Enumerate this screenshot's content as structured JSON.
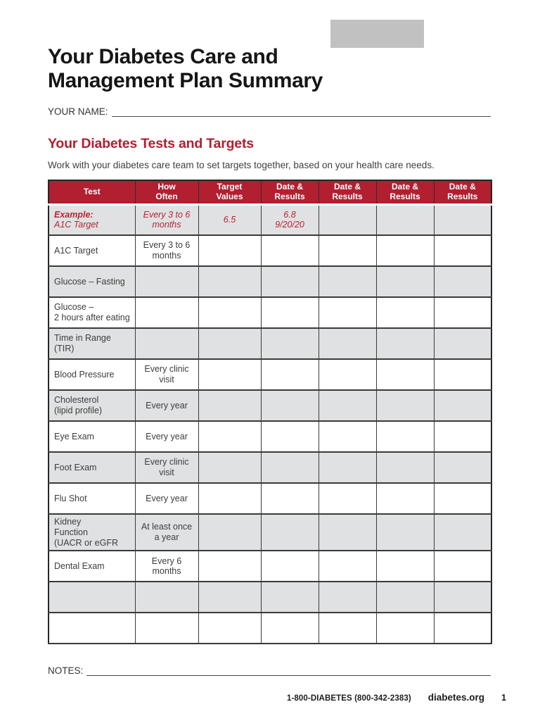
{
  "colors": {
    "accent": "#b11f30",
    "example_text": "#b52536",
    "row_shade": "#e0e1e2",
    "logo_gray": "#c1c1c1"
  },
  "header": {
    "title_line1": "Your Diabetes Care and",
    "title_line2": "Management Plan Summary",
    "name_label": "YOUR NAME:"
  },
  "section": {
    "heading": "Your Diabetes Tests and Targets",
    "intro": "Work with your diabetes care team to set targets together, based on your health care needs."
  },
  "table": {
    "headers": [
      "Test",
      "How\nOften",
      "Target\nValues",
      "Date &\nResults",
      "Date &\nResults",
      "Date &\nResults",
      "Date &\nResults"
    ],
    "rows": [
      {
        "example": true,
        "test": "Example:\nA1C Target",
        "how_often": "Every 3 to 6\nmonths",
        "target_values": "6.5",
        "results": [
          "6.8\n9/20/20",
          "",
          "",
          ""
        ]
      },
      {
        "example": false,
        "test": "A1C Target",
        "how_often": "Every 3 to 6\nmonths",
        "target_values": "",
        "results": [
          "",
          "",
          "",
          ""
        ]
      },
      {
        "example": false,
        "test": "Glucose – Fasting",
        "how_often": "",
        "target_values": "",
        "results": [
          "",
          "",
          "",
          ""
        ]
      },
      {
        "example": false,
        "test": "Glucose –\n2 hours after eating",
        "how_often": "",
        "target_values": "",
        "results": [
          "",
          "",
          "",
          ""
        ]
      },
      {
        "example": false,
        "test": "Time in Range\n(TIR)",
        "how_often": "",
        "target_values": "",
        "results": [
          "",
          "",
          "",
          ""
        ]
      },
      {
        "example": false,
        "test": "Blood Pressure",
        "how_often": "Every clinic\nvisit",
        "target_values": "",
        "results": [
          "",
          "",
          "",
          ""
        ]
      },
      {
        "example": false,
        "test": "Cholesterol\n(lipid profile)",
        "how_often": "Every year",
        "target_values": "",
        "results": [
          "",
          "",
          "",
          ""
        ]
      },
      {
        "example": false,
        "test": "Eye Exam",
        "how_often": "Every year",
        "target_values": "",
        "results": [
          "",
          "",
          "",
          ""
        ]
      },
      {
        "example": false,
        "test": "Foot Exam",
        "how_often": "Every clinic\nvisit",
        "target_values": "",
        "results": [
          "",
          "",
          "",
          ""
        ]
      },
      {
        "example": false,
        "test": "Flu Shot",
        "how_often": "Every year",
        "target_values": "",
        "results": [
          "",
          "",
          "",
          ""
        ]
      },
      {
        "example": false,
        "test": "Kidney\nFunction\n(UACR or eGFR",
        "how_often": "At least once\na year",
        "target_values": "",
        "results": [
          "",
          "",
          "",
          ""
        ]
      },
      {
        "example": false,
        "test": "Dental Exam",
        "how_often": "Every 6\nmonths",
        "target_values": "",
        "results": [
          "",
          "",
          "",
          ""
        ]
      },
      {
        "example": false,
        "test": "",
        "how_often": "",
        "target_values": "",
        "results": [
          "",
          "",
          "",
          ""
        ]
      },
      {
        "example": false,
        "test": "",
        "how_often": "",
        "target_values": "",
        "results": [
          "",
          "",
          "",
          ""
        ]
      }
    ]
  },
  "notes": {
    "label": "NOTES:"
  },
  "footer": {
    "phone": "1-800-DIABETES (800-342-2383)",
    "site": "diabetes.org",
    "page_number": "1"
  }
}
